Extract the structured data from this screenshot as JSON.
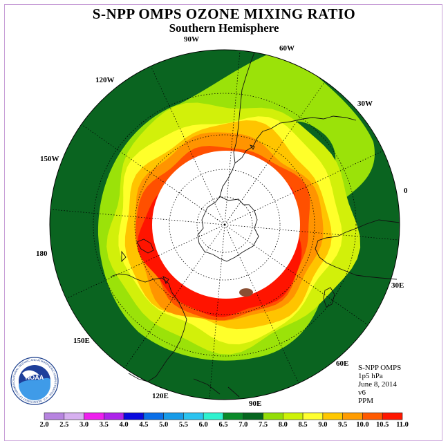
{
  "title": "S-NPP OMPS OZONE MIXING RATIO",
  "subtitle": "Southern Hemisphere",
  "logo_text": "NOAA",
  "logo_ring_text": "NATIONAL OCEANIC AND ATMOSPHERIC ADMINISTRATION · U.S. DEPARTMENT OF COMMERCE",
  "info": {
    "instrument": "S-NPP OMPS",
    "level": "1p5 hPa",
    "date": "June 8, 2014",
    "version": "v6",
    "units": "PPM"
  },
  "longitude_labels": [
    "90W",
    "60W",
    "30W",
    "0",
    "30E",
    "60E",
    "90E",
    "120E",
    "150E",
    "180",
    "150W",
    "120W"
  ],
  "colorbar": {
    "ticks": [
      "2.0",
      "2.5",
      "3.0",
      "3.5",
      "4.0",
      "4.5",
      "5.0",
      "5.5",
      "6.0",
      "6.5",
      "7.0",
      "7.5",
      "8.0",
      "8.5",
      "9.0",
      "9.5",
      "10.0",
      "10.5",
      "11.0"
    ],
    "colors": [
      "#b784e0",
      "#d7b0f0",
      "#ee1fee",
      "#ad24ea",
      "#0a0adf",
      "#0a6fe8",
      "#179be8",
      "#2bc3ef",
      "#2ff2cf",
      "#0a8a2a",
      "#06661f",
      "#93dd08",
      "#cdf208",
      "#ffff30",
      "#ffc800",
      "#ff9c00",
      "#ff5a00",
      "#ff1700",
      "#8a4f33"
    ]
  },
  "palette": {
    "background_low": "#0a6420",
    "lime": "#9be209",
    "yellow_green": "#d2f00a",
    "yellow": "#ffff2a",
    "gold": "#ffc400",
    "orange": "#ff9400",
    "red_orange": "#ff5000",
    "red": "#ff1400",
    "brown": "#8a4f33",
    "no_data": "#ffffff"
  }
}
